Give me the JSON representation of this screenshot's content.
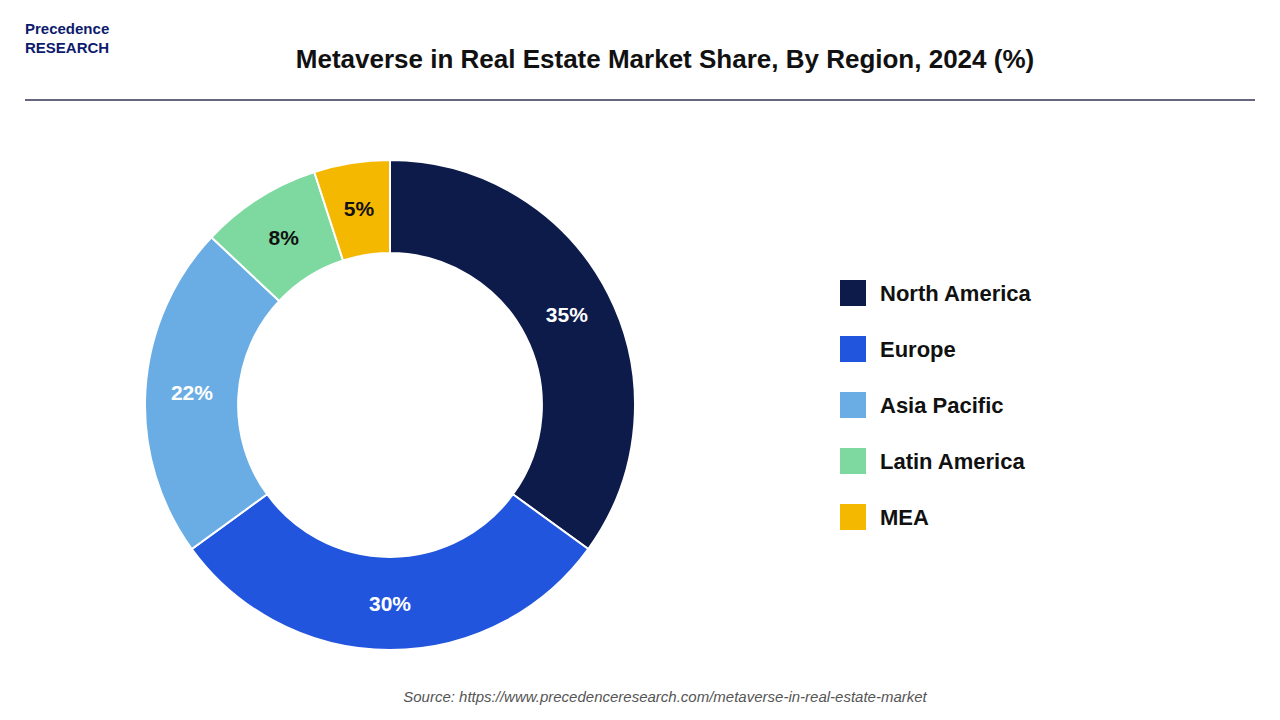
{
  "chart_data": {
    "type": "donut",
    "title": "Metaverse in Real Estate Market Share, By Region, 2024 (%)",
    "categories": [
      "North America",
      "Europe",
      "Asia Pacific",
      "Latin America",
      "MEA"
    ],
    "values": [
      35,
      30,
      22,
      8,
      5
    ],
    "value_labels": [
      "35%",
      "30%",
      "22%",
      "8%",
      "5%"
    ],
    "colors": [
      "#0d1b4b",
      "#2255dd",
      "#6aade4",
      "#7ed9a0",
      "#f5b800"
    ],
    "data_labels": true,
    "legend": "right",
    "annotations": [
      "Precedence\nRESEARCH",
      "Source: https://www.precedenceresearch.com/metaverse-in-real-estate-market"
    ]
  }
}
